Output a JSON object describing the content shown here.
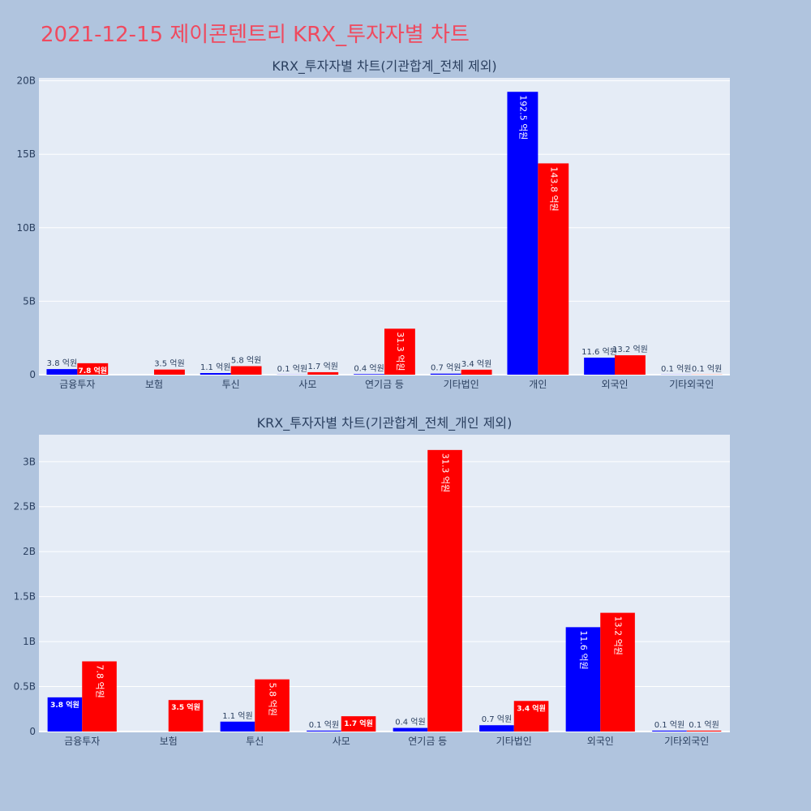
{
  "page": {
    "title": "2021-12-15 제이콘텐트리 KRX_투자자별 차트"
  },
  "colors": {
    "buy": "#0000ff",
    "sell": "#ff0000",
    "plot_bg": "#e5ecf6",
    "paper_bg": "#b0c4de",
    "title": "#ef4a5f"
  },
  "chart_data": [
    {
      "type": "bar",
      "title": "KRX_투자자별 차트(기관합계_전체 제외)",
      "categories": [
        "금융투자",
        "보험",
        "투신",
        "사모",
        "연기금 등",
        "기타법인",
        "개인",
        "외국인",
        "기타외국인"
      ],
      "series": [
        {
          "color": "#0000ff",
          "values": [
            380000000,
            0,
            110000000,
            10000000,
            40000000,
            70000000,
            19250000000,
            1160000000,
            10000000
          ],
          "labels": [
            "3.8 억원",
            "",
            "1.1 억원",
            "0.1 억원",
            "0.4 억원",
            "0.7 억원",
            "192.5 억원",
            "11.6 억원",
            "0.1 억원"
          ]
        },
        {
          "color": "#ff0000",
          "values": [
            780000000,
            350000000,
            580000000,
            170000000,
            3130000000,
            340000000,
            14380000000,
            1320000000,
            10000000
          ],
          "labels": [
            "7.8 억원",
            "3.5 억원",
            "5.8 억원",
            "1.7 억원",
            "31.3 억원",
            "3.4 억원",
            "143.8 억원",
            "13.2 억원",
            "0.1 억원"
          ]
        }
      ],
      "ylim": [
        0,
        20200000000
      ],
      "yticks": [
        0,
        5000000000,
        10000000000,
        15000000000,
        20000000000
      ],
      "yticklabels": [
        "0",
        "5B",
        "10B",
        "15B",
        "20B"
      ],
      "grid": true
    },
    {
      "type": "bar",
      "title": "KRX_투자자별 차트(기관합계_전체_개인 제외)",
      "categories": [
        "금융투자",
        "보험",
        "투신",
        "사모",
        "연기금 등",
        "기타법인",
        "외국인",
        "기타외국인"
      ],
      "series": [
        {
          "color": "#0000ff",
          "values": [
            380000000,
            0,
            110000000,
            10000000,
            40000000,
            70000000,
            1160000000,
            10000000
          ],
          "labels": [
            "3.8 억원",
            "",
            "1.1 억원",
            "0.1 억원",
            "0.4 억원",
            "0.7 억원",
            "11.6 억원",
            "0.1 억원"
          ]
        },
        {
          "color": "#ff0000",
          "values": [
            780000000,
            350000000,
            580000000,
            170000000,
            3130000000,
            340000000,
            1320000000,
            10000000
          ],
          "labels": [
            "7.8 억원",
            "3.5 억원",
            "5.8 억원",
            "1.7 억원",
            "31.3 억원",
            "3.4 억원",
            "13.2 억원",
            "0.1 억원"
          ]
        }
      ],
      "ylim": [
        0,
        3300000000
      ],
      "yticks": [
        0,
        500000000,
        1000000000,
        1500000000,
        2000000000,
        2500000000,
        3000000000
      ],
      "yticklabels": [
        "0",
        "0.5B",
        "1B",
        "1.5B",
        "2B",
        "2.5B",
        "3B"
      ],
      "grid": true
    }
  ]
}
